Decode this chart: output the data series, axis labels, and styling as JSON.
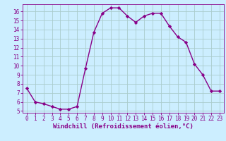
{
  "x": [
    0,
    1,
    2,
    3,
    4,
    5,
    6,
    7,
    8,
    9,
    10,
    11,
    12,
    13,
    14,
    15,
    16,
    17,
    18,
    19,
    20,
    21,
    22,
    23
  ],
  "y": [
    7.5,
    6.0,
    5.8,
    5.5,
    5.2,
    5.2,
    5.5,
    9.7,
    13.7,
    15.8,
    16.4,
    16.4,
    15.5,
    14.8,
    15.5,
    15.8,
    15.8,
    14.4,
    13.2,
    12.6,
    10.2,
    9.0,
    7.2,
    7.2
  ],
  "line_color": "#880088",
  "marker": "D",
  "marker_size": 2.2,
  "bg_color": "#cceeff",
  "grid_color": "#aacccc",
  "xlabel": "Windchill (Refroidissement éolien,°C)",
  "xlabel_color": "#880088",
  "ylim": [
    4.8,
    16.8
  ],
  "xlim": [
    -0.5,
    23.5
  ],
  "yticks": [
    5,
    6,
    7,
    8,
    9,
    10,
    11,
    12,
    13,
    14,
    15,
    16
  ],
  "xticks": [
    0,
    1,
    2,
    3,
    4,
    5,
    6,
    7,
    8,
    9,
    10,
    11,
    12,
    13,
    14,
    15,
    16,
    17,
    18,
    19,
    20,
    21,
    22,
    23
  ],
  "tick_color": "#880088",
  "tick_fontsize": 5.5,
  "xlabel_fontsize": 6.5
}
